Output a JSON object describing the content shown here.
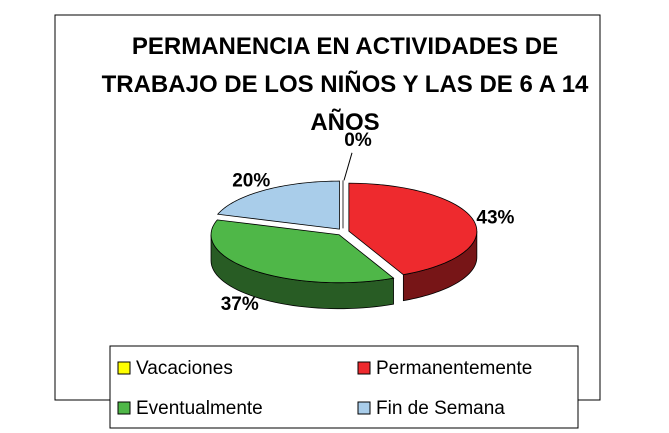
{
  "chart_data": {
    "type": "pie",
    "title": "PERMANENCIA EN ACTIVIDADES DE TRABAJO DE LOS NIÑOS Y LAS DE 6 A 14 AÑOS",
    "categories": [
      "Vacaciones",
      "Permanentemente",
      "Eventualmente",
      "Fin de Semana"
    ],
    "values": [
      0,
      43,
      37,
      20
    ],
    "value_labels": [
      "0%",
      "43%",
      "37%",
      "20%"
    ],
    "colors": [
      "#ffff00",
      "#ee2a2e",
      "#4fb748",
      "#a9cdea"
    ]
  }
}
